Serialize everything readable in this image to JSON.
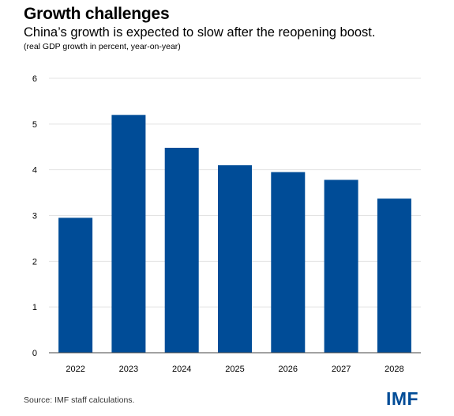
{
  "header": {
    "title": "Growth challenges",
    "subtitle": "China’s growth is expected to slow after the reopening boost.",
    "note": "(real GDP growth in percent, year-on-year)"
  },
  "footer": {
    "source": "Source: IMF staff calculations.",
    "logo": "IMF"
  },
  "colors": {
    "bar": "#004C97",
    "gridline": "#E3E3E3",
    "axis": "#444444",
    "logo": "#004C97"
  },
  "chart_data": {
    "type": "bar",
    "title": "Growth challenges",
    "subtitle": "China’s growth is expected to slow after the reopening boost.",
    "ylabel": "",
    "xlabel": "",
    "categories": [
      "2022",
      "2023",
      "2024",
      "2025",
      "2026",
      "2027",
      "2028"
    ],
    "values": [
      2.95,
      5.2,
      4.48,
      4.1,
      3.95,
      3.78,
      3.37
    ],
    "ylim": [
      0,
      6
    ],
    "yticks": [
      0,
      1,
      2,
      3,
      4,
      5,
      6
    ],
    "grid": true,
    "legend": "none"
  }
}
